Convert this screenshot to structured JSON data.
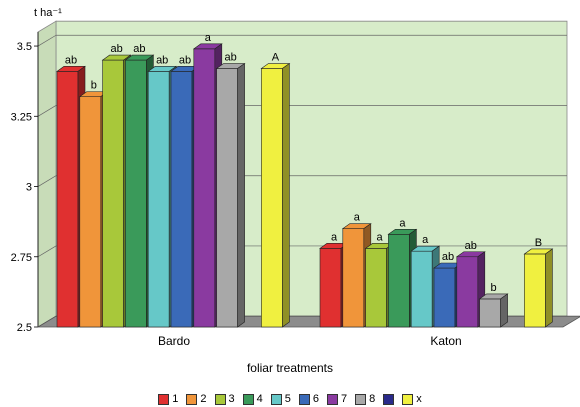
{
  "chart_data": {
    "type": "bar",
    "unit_label": "t ha⁻¹",
    "xlabel": "foliar treatments",
    "ylabel": "",
    "ylim": [
      2.5,
      3.55
    ],
    "yticks": [
      "2.5",
      "2.75",
      "3",
      "3.25",
      "3.5"
    ],
    "grid": true,
    "legend_position": "bottom",
    "categories": [
      "Bardo",
      "Katon"
    ],
    "series": [
      {
        "name": "1",
        "color": "#e03030",
        "values": [
          3.41,
          2.78
        ],
        "labels": [
          "ab",
          "a"
        ]
      },
      {
        "name": "2",
        "color": "#f0953a",
        "values": [
          3.32,
          2.85
        ],
        "labels": [
          "b",
          "a"
        ]
      },
      {
        "name": "3",
        "color": "#a8c83a",
        "values": [
          3.45,
          2.78
        ],
        "labels": [
          "ab",
          "a"
        ]
      },
      {
        "name": "4",
        "color": "#3a9a5a",
        "values": [
          3.45,
          2.83
        ],
        "labels": [
          "ab",
          "a"
        ]
      },
      {
        "name": "5",
        "color": "#66c8c8",
        "values": [
          3.41,
          2.77
        ],
        "labels": [
          "ab",
          "a"
        ]
      },
      {
        "name": "6",
        "color": "#3a6ab8",
        "values": [
          3.41,
          2.71
        ],
        "labels": [
          "ab",
          "ab"
        ]
      },
      {
        "name": "7",
        "color": "#8a3aa0",
        "values": [
          3.49,
          2.75
        ],
        "labels": [
          "a",
          "ab"
        ]
      },
      {
        "name": "8",
        "color": "#a8a8a8",
        "values": [
          3.42,
          2.6
        ],
        "labels": [
          "ab",
          "b"
        ]
      },
      {
        "name": "",
        "color": "#2a2a8a",
        "values": [
          null,
          null
        ],
        "labels": [
          "",
          ""
        ]
      },
      {
        "name": "x",
        "color": "#f0f040",
        "values": [
          3.42,
          2.76
        ],
        "labels": [
          "A",
          "B"
        ]
      }
    ]
  }
}
